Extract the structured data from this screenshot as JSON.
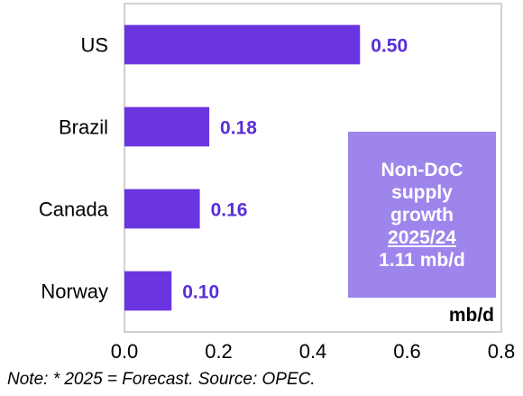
{
  "chart_data": {
    "type": "bar",
    "orientation": "horizontal",
    "categories": [
      "US",
      "Brazil",
      "Canada",
      "Norway"
    ],
    "values": [
      0.5,
      0.18,
      0.16,
      0.1
    ],
    "value_labels": [
      "0.50",
      "0.18",
      "0.16",
      "0.10"
    ],
    "xlim": [
      0.0,
      0.8
    ],
    "xticks": [
      "0.0",
      "0.2",
      "0.4",
      "0.6",
      "0.8"
    ],
    "unit_label": "mb/d",
    "grid": false,
    "legend": "none"
  },
  "callout": {
    "lines": [
      "Non-DoC",
      "supply",
      "growth"
    ],
    "period": "2025/24",
    "total": "1.11 mb/d"
  },
  "note": "Note: * 2025 = Forecast. Source: OPEC.",
  "colors": {
    "bar": "#6a35e0",
    "value_label": "#5a2ed8",
    "callout_bg": "#9e85ec",
    "axis": "#b0b0b0"
  }
}
